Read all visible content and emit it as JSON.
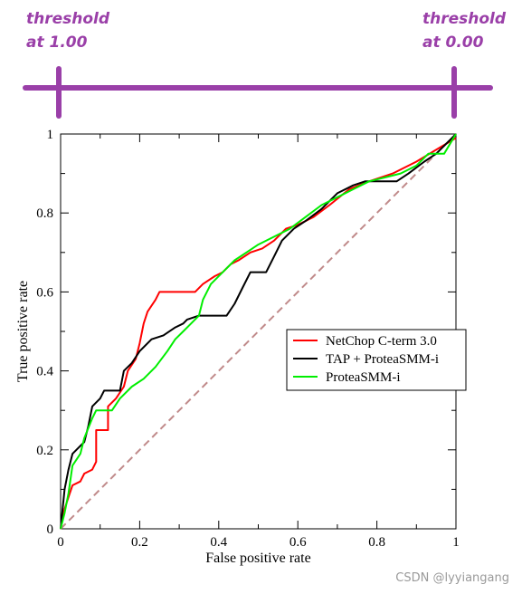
{
  "annotations": {
    "left_line1": "threshold",
    "left_line2": "at 1.00",
    "right_line1": "threshold",
    "right_line2": "at 0.00"
  },
  "colors": {
    "annotation": "#9a3fa8",
    "netchop": "#ff0000",
    "tap": "#000000",
    "proteasmm": "#00ee00",
    "diagonal": "#c08a8a"
  },
  "watermark": "CSDN @lyyiangang",
  "chart_data": {
    "type": "line",
    "title": "",
    "xlabel": "False positive rate",
    "ylabel": "True positive rate",
    "xlim": [
      0,
      1
    ],
    "ylim": [
      0,
      1
    ],
    "x_ticks": [
      "0",
      "0.2",
      "0.4",
      "0.6",
      "0.8",
      "1"
    ],
    "y_ticks": [
      "0",
      "0.2",
      "0.4",
      "0.6",
      "0.8",
      "1"
    ],
    "grid": false,
    "legend_position": "center-right",
    "diagonal": [
      [
        0,
        0
      ],
      [
        1,
        1
      ]
    ],
    "series": [
      {
        "name": "NetChop C-term 3.0",
        "color": "#ff0000",
        "points": [
          [
            0,
            0
          ],
          [
            0.01,
            0.05
          ],
          [
            0.02,
            0.08
          ],
          [
            0.03,
            0.11
          ],
          [
            0.05,
            0.12
          ],
          [
            0.06,
            0.14
          ],
          [
            0.08,
            0.15
          ],
          [
            0.09,
            0.17
          ],
          [
            0.09,
            0.25
          ],
          [
            0.12,
            0.25
          ],
          [
            0.12,
            0.31
          ],
          [
            0.14,
            0.33
          ],
          [
            0.16,
            0.36
          ],
          [
            0.17,
            0.4
          ],
          [
            0.19,
            0.43
          ],
          [
            0.2,
            0.47
          ],
          [
            0.21,
            0.52
          ],
          [
            0.22,
            0.55
          ],
          [
            0.24,
            0.58
          ],
          [
            0.25,
            0.6
          ],
          [
            0.34,
            0.6
          ],
          [
            0.36,
            0.62
          ],
          [
            0.39,
            0.64
          ],
          [
            0.41,
            0.65
          ],
          [
            0.43,
            0.67
          ],
          [
            0.45,
            0.68
          ],
          [
            0.48,
            0.7
          ],
          [
            0.51,
            0.71
          ],
          [
            0.54,
            0.73
          ],
          [
            0.57,
            0.76
          ],
          [
            0.6,
            0.77
          ],
          [
            0.64,
            0.79
          ],
          [
            0.68,
            0.82
          ],
          [
            0.73,
            0.86
          ],
          [
            0.78,
            0.88
          ],
          [
            0.84,
            0.9
          ],
          [
            0.9,
            0.93
          ],
          [
            0.95,
            0.96
          ],
          [
            1.0,
            0.99
          ]
        ]
      },
      {
        "name": "TAP + ProteaSMM-i",
        "color": "#000000",
        "points": [
          [
            0,
            0
          ],
          [
            0.01,
            0.1
          ],
          [
            0.02,
            0.15
          ],
          [
            0.03,
            0.19
          ],
          [
            0.05,
            0.21
          ],
          [
            0.06,
            0.22
          ],
          [
            0.07,
            0.26
          ],
          [
            0.08,
            0.31
          ],
          [
            0.1,
            0.33
          ],
          [
            0.11,
            0.35
          ],
          [
            0.15,
            0.35
          ],
          [
            0.16,
            0.4
          ],
          [
            0.18,
            0.42
          ],
          [
            0.2,
            0.45
          ],
          [
            0.23,
            0.48
          ],
          [
            0.26,
            0.49
          ],
          [
            0.29,
            0.51
          ],
          [
            0.31,
            0.52
          ],
          [
            0.32,
            0.53
          ],
          [
            0.35,
            0.54
          ],
          [
            0.42,
            0.54
          ],
          [
            0.44,
            0.57
          ],
          [
            0.46,
            0.61
          ],
          [
            0.48,
            0.65
          ],
          [
            0.52,
            0.65
          ],
          [
            0.54,
            0.69
          ],
          [
            0.56,
            0.73
          ],
          [
            0.59,
            0.76
          ],
          [
            0.62,
            0.78
          ],
          [
            0.66,
            0.81
          ],
          [
            0.7,
            0.85
          ],
          [
            0.74,
            0.87
          ],
          [
            0.77,
            0.88
          ],
          [
            0.85,
            0.88
          ],
          [
            0.88,
            0.9
          ],
          [
            0.92,
            0.93
          ],
          [
            0.95,
            0.95
          ],
          [
            0.98,
            0.98
          ],
          [
            1.0,
            1.0
          ]
        ]
      },
      {
        "name": "ProteaSMM-i",
        "color": "#00ee00",
        "points": [
          [
            0,
            0
          ],
          [
            0.01,
            0.04
          ],
          [
            0.02,
            0.09
          ],
          [
            0.03,
            0.16
          ],
          [
            0.05,
            0.19
          ],
          [
            0.06,
            0.23
          ],
          [
            0.08,
            0.28
          ],
          [
            0.09,
            0.3
          ],
          [
            0.13,
            0.3
          ],
          [
            0.15,
            0.33
          ],
          [
            0.18,
            0.36
          ],
          [
            0.21,
            0.38
          ],
          [
            0.24,
            0.41
          ],
          [
            0.27,
            0.45
          ],
          [
            0.29,
            0.48
          ],
          [
            0.31,
            0.5
          ],
          [
            0.33,
            0.52
          ],
          [
            0.35,
            0.54
          ],
          [
            0.36,
            0.58
          ],
          [
            0.38,
            0.62
          ],
          [
            0.41,
            0.65
          ],
          [
            0.44,
            0.68
          ],
          [
            0.47,
            0.7
          ],
          [
            0.5,
            0.72
          ],
          [
            0.54,
            0.74
          ],
          [
            0.58,
            0.76
          ],
          [
            0.62,
            0.79
          ],
          [
            0.66,
            0.82
          ],
          [
            0.7,
            0.84
          ],
          [
            0.74,
            0.86
          ],
          [
            0.78,
            0.88
          ],
          [
            0.82,
            0.89
          ],
          [
            0.86,
            0.9
          ],
          [
            0.9,
            0.92
          ],
          [
            0.93,
            0.95
          ],
          [
            0.97,
            0.95
          ],
          [
            1.0,
            1.0
          ]
        ]
      }
    ]
  }
}
